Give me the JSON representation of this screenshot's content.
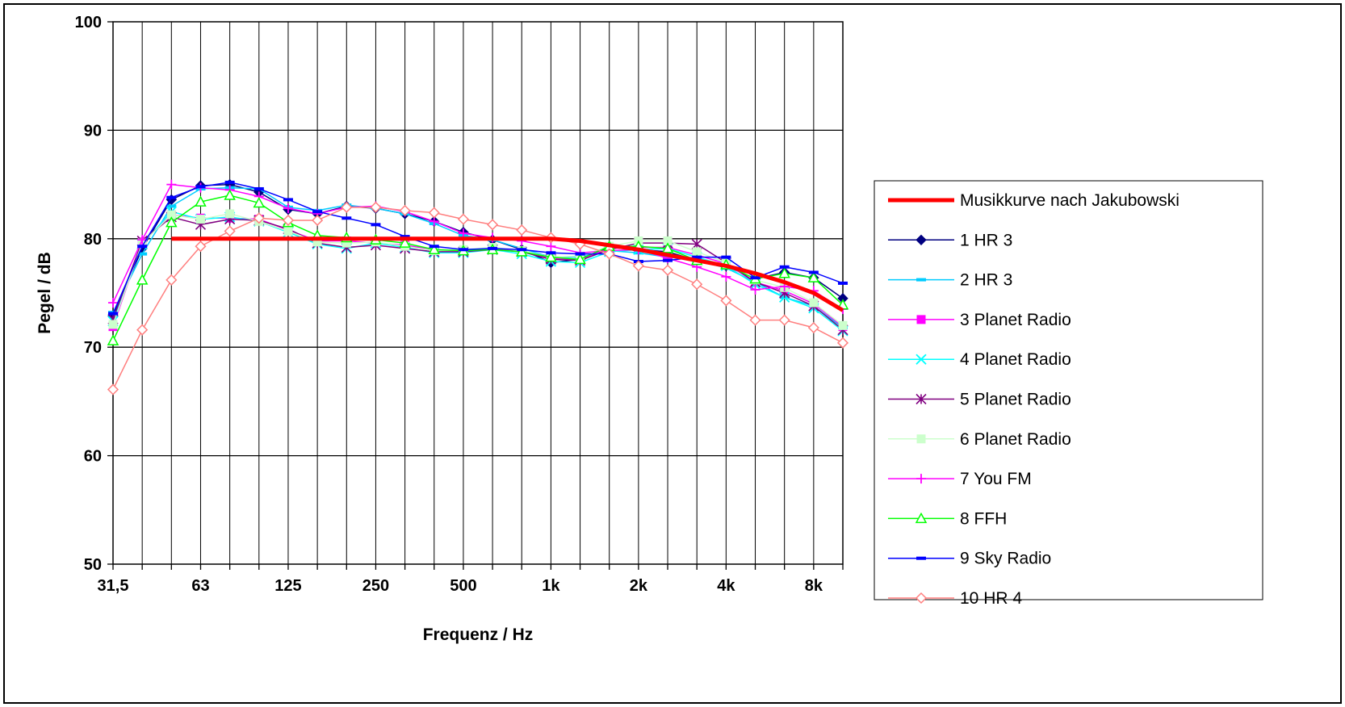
{
  "chart_data": {
    "type": "line",
    "title": "",
    "xlabel": "Frequenz / Hz",
    "ylabel": "Pegel / dB",
    "ylim": [
      50,
      100
    ],
    "y_ticks": [
      "50",
      "60",
      "70",
      "80",
      "90",
      "100"
    ],
    "x_scale": "log (third-octave bands)",
    "x_tick_labels": [
      "31,5",
      "63",
      "125",
      "250",
      "500",
      "1k",
      "2k",
      "4k",
      "8k"
    ],
    "x": [
      31.5,
      40,
      50,
      63,
      80,
      100,
      125,
      160,
      200,
      250,
      315,
      400,
      500,
      630,
      800,
      1000,
      1250,
      1600,
      2000,
      2500,
      3150,
      4000,
      5000,
      6300,
      8000,
      10000
    ],
    "grid": "vertical lines at every band, horizontal lines every 10 dB",
    "legend_position": "right",
    "series": [
      {
        "name": "Musikkurve nach Jakubowski",
        "color": "#ff0000",
        "marker": "none",
        "values": [
          null,
          null,
          80,
          80,
          80,
          80,
          80,
          80,
          80,
          80,
          80,
          80,
          80,
          80,
          80,
          80,
          79.8,
          79.4,
          79.0,
          78.5,
          78.0,
          77.5,
          76.8,
          76.0,
          75.0,
          73.4
        ]
      },
      {
        "name": "1 HR 3",
        "color": "#000080",
        "marker": "diamond",
        "values": [
          72.9,
          79.1,
          83.6,
          84.9,
          85.0,
          84.3,
          82.7,
          82.3,
          83.0,
          82.8,
          82.3,
          81.6,
          80.6,
          79.9,
          79.0,
          77.8,
          78.1,
          79.2,
          79.0,
          78.8,
          78.0,
          77.5,
          76.3,
          76.9,
          76.4,
          74.5
        ]
      },
      {
        "name": "2 HR 3",
        "color": "#00ccff",
        "marker": "dash",
        "values": [
          73.2,
          78.6,
          83.0,
          84.6,
          84.7,
          84.6,
          82.9,
          82.6,
          83.1,
          82.8,
          82.3,
          81.4,
          80.3,
          79.9,
          79.1,
          78.3,
          78.3,
          78.9,
          78.7,
          78.3,
          78.0,
          77.3,
          76.0,
          74.6,
          73.8,
          71.8
        ]
      },
      {
        "name": "3 Planet Radio",
        "color": "#ff00ff",
        "marker": "square",
        "values": [
          71.9,
          79.7,
          82.2,
          81.9,
          81.9,
          81.8,
          80.8,
          79.8,
          79.8,
          79.6,
          79.4,
          79.0,
          78.9,
          79.1,
          78.9,
          78.2,
          78.1,
          79.1,
          79.2,
          79.2,
          78.5,
          77.7,
          76.0,
          75.2,
          74.0,
          71.9
        ]
      },
      {
        "name": "4 Planet Radio",
        "color": "#00ffff",
        "marker": "x",
        "values": [
          72.4,
          79.5,
          82.5,
          81.8,
          82.0,
          81.6,
          80.6,
          79.5,
          79.1,
          79.6,
          79.2,
          78.7,
          78.7,
          79.0,
          78.6,
          77.9,
          77.8,
          78.8,
          79.0,
          79.1,
          78.3,
          77.5,
          75.8,
          74.6,
          73.6,
          71.5
        ]
      },
      {
        "name": "5 Planet Radio",
        "color": "#800080",
        "marker": "star",
        "values": [
          72.6,
          79.8,
          82.0,
          81.3,
          81.8,
          81.7,
          80.9,
          79.6,
          79.2,
          79.4,
          79.1,
          78.8,
          78.8,
          79.0,
          78.8,
          78.1,
          78.0,
          79.0,
          79.6,
          79.6,
          79.5,
          77.8,
          76.0,
          75.0,
          73.8,
          71.6
        ]
      },
      {
        "name": "6 Planet Radio",
        "color": "#ccffcc",
        "marker": "square",
        "values": [
          72.1,
          79.6,
          82.2,
          81.8,
          82.3,
          81.6,
          80.7,
          79.7,
          79.6,
          79.7,
          79.3,
          78.9,
          79.0,
          79.2,
          78.9,
          78.3,
          78.4,
          79.3,
          79.8,
          79.8,
          78.8,
          77.8,
          76.2,
          75.5,
          74.1,
          72.0
        ]
      },
      {
        "name": "7 You FM",
        "color": "#ff00ff",
        "marker": "plus",
        "values": [
          74.1,
          79.9,
          85.0,
          84.7,
          84.5,
          83.9,
          82.8,
          82.3,
          82.9,
          83.0,
          82.5,
          81.6,
          80.5,
          80.1,
          79.8,
          79.3,
          78.7,
          78.9,
          79.0,
          78.2,
          77.4,
          76.5,
          75.3,
          75.6,
          75.2,
          73.5
        ]
      },
      {
        "name": "8 FFH",
        "color": "#00ff00",
        "marker": "triangle",
        "values": [
          70.6,
          76.2,
          81.5,
          83.4,
          84.0,
          83.3,
          81.5,
          80.3,
          80.1,
          79.9,
          79.6,
          79.0,
          78.9,
          79.0,
          78.8,
          78.3,
          78.1,
          79.3,
          79.3,
          79.1,
          78.0,
          77.6,
          76.3,
          76.8,
          76.4,
          73.9
        ]
      },
      {
        "name": "9 Sky Radio",
        "color": "#0000ff",
        "marker": "dash",
        "values": [
          73.1,
          79.3,
          83.8,
          84.8,
          85.2,
          84.6,
          83.6,
          82.5,
          81.9,
          81.3,
          80.2,
          79.3,
          79.0,
          79.1,
          79.0,
          78.7,
          78.6,
          78.6,
          77.9,
          78.0,
          78.3,
          78.3,
          76.4,
          77.4,
          76.9,
          75.9
        ]
      },
      {
        "name": "10 HR 4",
        "color": "#ff7f7f",
        "marker": "diamond-open",
        "values": [
          66.1,
          71.6,
          76.2,
          79.3,
          80.7,
          81.9,
          81.7,
          81.7,
          82.9,
          82.9,
          82.6,
          82.4,
          81.8,
          81.3,
          80.8,
          80.1,
          79.5,
          78.6,
          77.5,
          77.1,
          75.8,
          74.3,
          72.5,
          72.5,
          71.8,
          70.4
        ]
      }
    ]
  }
}
